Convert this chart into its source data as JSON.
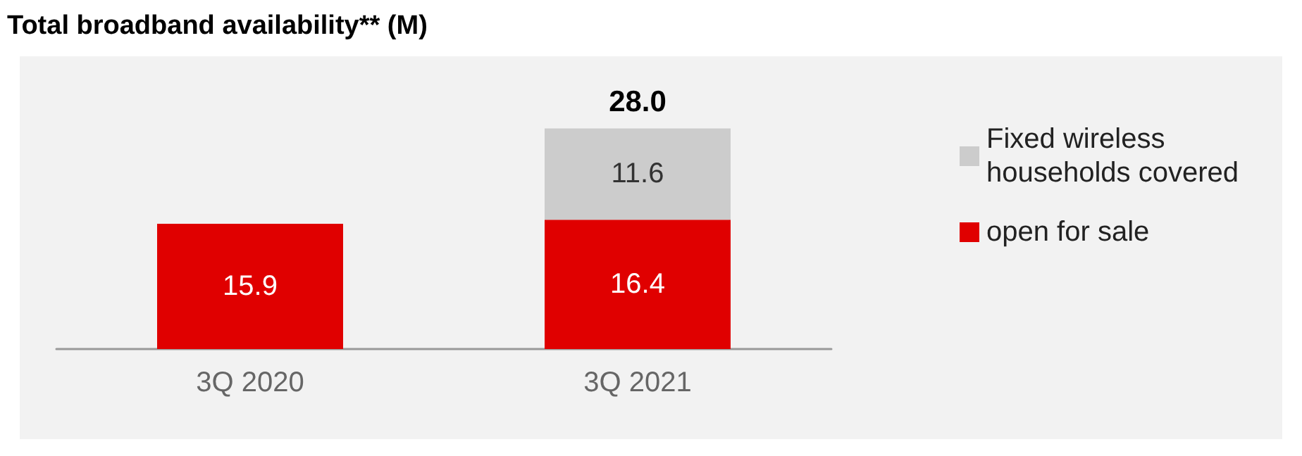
{
  "chart_data": {
    "type": "bar",
    "title": "Total broadband availability** (M)",
    "categories": [
      "3Q 2020",
      "3Q 2021"
    ],
    "stacked": true,
    "series": [
      {
        "name": "open for sale",
        "color": "#e00000",
        "values": [
          15.9,
          16.4
        ]
      },
      {
        "name": "Fixed wireless households covered",
        "color": "#cccccc",
        "values": [
          null,
          11.6
        ]
      }
    ],
    "totals": [
      null,
      "28.0"
    ],
    "data_labels": true,
    "tick_labels": "x",
    "legend": "right"
  }
}
